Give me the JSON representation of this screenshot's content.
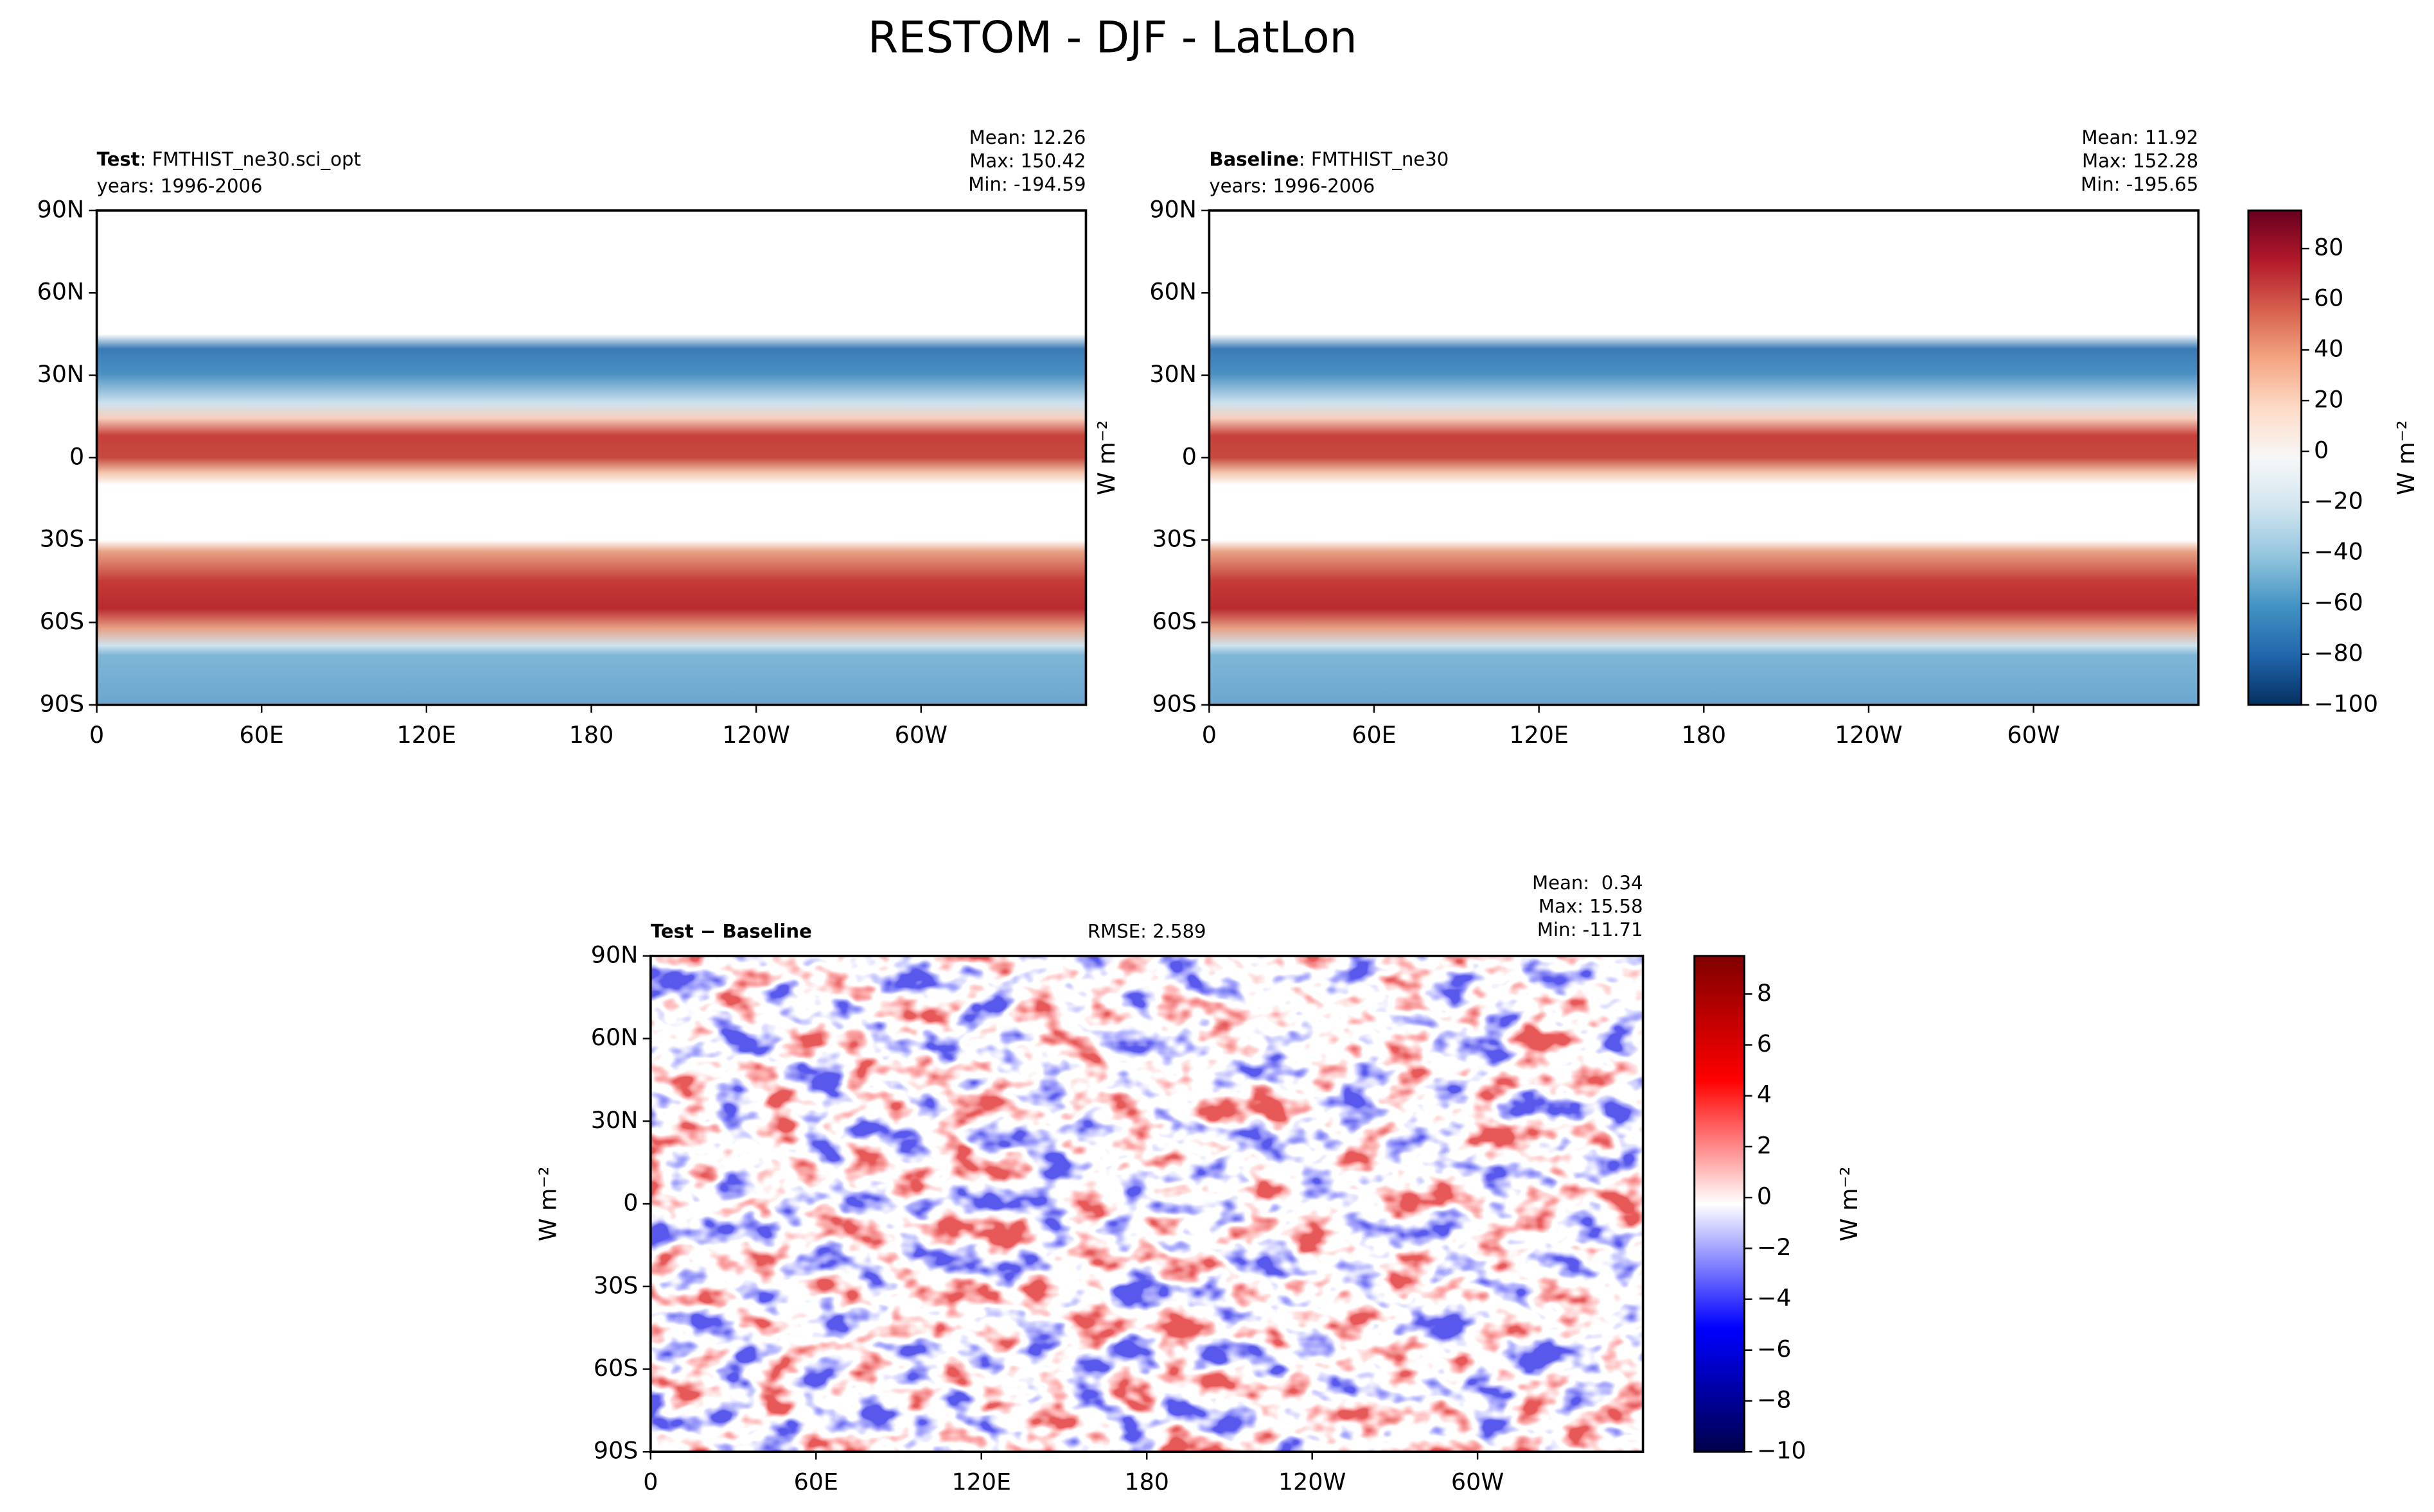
{
  "title": "RESTOM - DJF - LatLon",
  "chart_data": [
    {
      "type": "map",
      "title_bold": "Test",
      "title": ": FMTHIST_ne30.sci_opt",
      "subtitle": "years: 1996-2006",
      "stats": [
        "Mean: 12.26",
        "Max: 150.42",
        "Min: -194.59"
      ],
      "xlim": [
        0,
        360
      ],
      "ylim": [
        -90,
        90
      ],
      "xticks": [
        0,
        {
          "value": 60,
          "label": "60E"
        },
        {
          "value": 120,
          "label": "120E"
        },
        180,
        {
          "value": 240,
          "label": "120W"
        },
        {
          "value": 300,
          "label": "60W"
        }
      ],
      "yticks": [
        {
          "value": -90,
          "label": "90S"
        },
        {
          "value": -60,
          "label": "60S"
        },
        {
          "value": -30,
          "label": "30S"
        },
        0,
        {
          "value": 30,
          "label": "30N"
        },
        {
          "value": 60,
          "label": "60N"
        },
        {
          "value": 90,
          "label": "90N"
        }
      ]
    },
    {
      "type": "map",
      "title_bold": "Baseline",
      "title": ": FMTHIST_ne30",
      "subtitle": "years: 1996-2006",
      "stats": [
        "Mean: 11.92",
        "Max: 152.28",
        "Min: -195.65"
      ],
      "ylabel": "W m⁻²",
      "xlim": [
        0,
        360
      ],
      "ylim": [
        -90,
        90
      ],
      "xticks": [
        0,
        {
          "value": 60,
          "label": "60E"
        },
        {
          "value": 120,
          "label": "120E"
        },
        180,
        {
          "value": 240,
          "label": "120W"
        },
        {
          "value": 300,
          "label": "60W"
        }
      ],
      "yticks": [
        {
          "value": -90,
          "label": "90S"
        },
        {
          "value": -60,
          "label": "60S"
        },
        {
          "value": -30,
          "label": "30S"
        },
        0,
        {
          "value": 30,
          "label": "30N"
        },
        {
          "value": 60,
          "label": "60N"
        },
        {
          "value": 90,
          "label": "90N"
        }
      ],
      "colorbar": {
        "label": "W m⁻²",
        "lim": [
          -100,
          95
        ],
        "colors": [
          "#053061",
          "#2166ac",
          "#4393c3",
          "#92c5de",
          "#d1e5f0",
          "#f7f7f7",
          "#fddbc7",
          "#f4a582",
          "#d6604d",
          "#b2182b",
          "#67001f"
        ],
        "ticks": [
          {
            "value": -100,
            "label": "−100"
          },
          {
            "value": -80,
            "label": "−80"
          },
          {
            "value": -60,
            "label": "−60"
          },
          {
            "value": -40,
            "label": "−40"
          },
          {
            "value": -20,
            "label": "−20"
          },
          0,
          20,
          40,
          60,
          80
        ]
      }
    },
    {
      "type": "map",
      "title_bold": "Test − Baseline",
      "center_text": "RMSE: 2.589",
      "stats": [
        "Mean:  0.34",
        "Max: 15.58",
        "Min: -11.71"
      ],
      "ylabel": "W m⁻²",
      "xlim": [
        0,
        360
      ],
      "ylim": [
        -90,
        90
      ],
      "xticks": [
        0,
        {
          "value": 60,
          "label": "60E"
        },
        {
          "value": 120,
          "label": "120E"
        },
        180,
        {
          "value": 240,
          "label": "120W"
        },
        {
          "value": 300,
          "label": "60W"
        }
      ],
      "yticks": [
        {
          "value": -90,
          "label": "90S"
        },
        {
          "value": -60,
          "label": "60S"
        },
        {
          "value": -30,
          "label": "30S"
        },
        0,
        {
          "value": 30,
          "label": "30N"
        },
        {
          "value": 60,
          "label": "60N"
        },
        {
          "value": 90,
          "label": "90N"
        }
      ],
      "colorbar": {
        "label": "W m⁻²",
        "lim": [
          -10,
          9.5
        ],
        "colors": [
          "#00004c",
          "#0000ff",
          "#ffffff",
          "#ff0000",
          "#7f0000"
        ],
        "ticks": [
          {
            "value": -10,
            "label": "−10"
          },
          {
            "value": -8,
            "label": "−8"
          },
          {
            "value": -6,
            "label": "−6"
          },
          {
            "value": -4,
            "label": "−4"
          },
          {
            "value": -2,
            "label": "−2"
          },
          0,
          2,
          4,
          6,
          8
        ]
      }
    }
  ]
}
